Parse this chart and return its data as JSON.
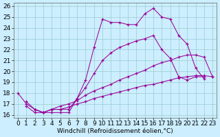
{
  "xlabel": "Windchill (Refroidissement éolien,°C)",
  "background_color": "#cceeff",
  "line_color": "#990099",
  "xlim": [
    -0.5,
    23.5
  ],
  "ylim": [
    15.7,
    26.3
  ],
  "yticks": [
    16,
    17,
    18,
    19,
    20,
    21,
    22,
    23,
    24,
    25,
    26
  ],
  "xticks": [
    0,
    1,
    2,
    3,
    4,
    5,
    6,
    7,
    8,
    9,
    10,
    11,
    12,
    13,
    14,
    15,
    16,
    17,
    18,
    19,
    20,
    21,
    22,
    23
  ],
  "grid_color": "#99cccc",
  "font_size_label": 6.5,
  "font_size_tick": 6.5,
  "line1_x": [
    0,
    1,
    2,
    3,
    4,
    5,
    6,
    7,
    8,
    9,
    10,
    11,
    12,
    13,
    14,
    15,
    16,
    17,
    18,
    19,
    20,
    21,
    22
  ],
  "line1_y": [
    18.0,
    17.0,
    16.5,
    16.2,
    16.2,
    16.2,
    16.2,
    17.5,
    19.2,
    22.2,
    24.8,
    24.5,
    24.5,
    24.3,
    24.3,
    25.3,
    25.8,
    25.0,
    24.8,
    23.3,
    22.5,
    20.3,
    19.3
  ],
  "line2_x": [
    2,
    3,
    4,
    5,
    6,
    7,
    8,
    9,
    10,
    11,
    12,
    13,
    14,
    15,
    16,
    17,
    18,
    19,
    20,
    21,
    22
  ],
  "line2_y": [
    16.5,
    16.2,
    16.5,
    16.5,
    16.5,
    17.5,
    18.5,
    19.8,
    21.0,
    21.7,
    22.2,
    22.5,
    22.8,
    23.0,
    23.3,
    22.0,
    21.2,
    19.5,
    19.2,
    19.5,
    19.5
  ],
  "line3_x": [
    1,
    2,
    3,
    4,
    5,
    6,
    7,
    8,
    9,
    10,
    11,
    12,
    13,
    14,
    15,
    16,
    17,
    18,
    19,
    20,
    21,
    22,
    23
  ],
  "line3_y": [
    17.2,
    16.5,
    16.2,
    16.5,
    16.8,
    17.0,
    17.3,
    17.8,
    18.2,
    18.5,
    18.8,
    19.2,
    19.5,
    19.8,
    20.1,
    20.5,
    20.8,
    21.0,
    21.3,
    21.5,
    21.5,
    21.3,
    19.5
  ],
  "line4_x": [
    1,
    2,
    3,
    4,
    5,
    6,
    7,
    8,
    9,
    10,
    11,
    12,
    13,
    14,
    15,
    16,
    17,
    18,
    19,
    20,
    21,
    22,
    23
  ],
  "line4_y": [
    16.8,
    16.2,
    16.2,
    16.5,
    16.5,
    16.7,
    17.0,
    17.2,
    17.5,
    17.7,
    17.9,
    18.1,
    18.3,
    18.5,
    18.7,
    18.8,
    19.0,
    19.2,
    19.4,
    19.5,
    19.6,
    19.6,
    19.5
  ]
}
